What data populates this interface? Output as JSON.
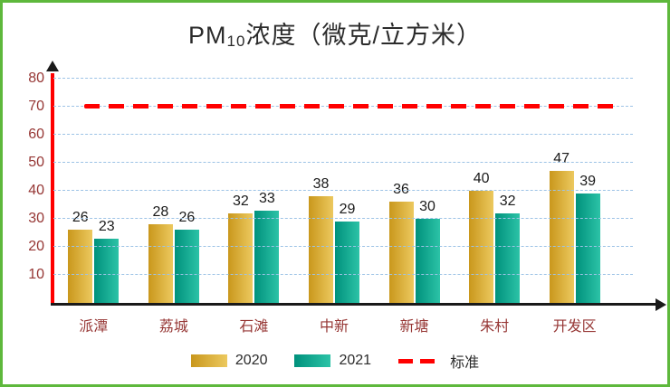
{
  "chart_data": {
    "type": "bar",
    "title": "PM10浓度（微克/立方米）",
    "title_parts": {
      "prefix": "PM",
      "sub": "10",
      "suffix": "浓度（微克/立方米）"
    },
    "categories": [
      "派潭",
      "荔城",
      "石滩",
      "中新",
      "新塘",
      "朱村",
      "开发区"
    ],
    "series": [
      {
        "name": "2020",
        "values": [
          26,
          28,
          32,
          38,
          36,
          40,
          47
        ],
        "color": "#c9971c",
        "color2": "#ecc95f"
      },
      {
        "name": "2021",
        "values": [
          23,
          26,
          33,
          29,
          30,
          32,
          39
        ],
        "color": "#00917c",
        "color2": "#2cc3a7"
      }
    ],
    "reference_line": {
      "label": "标准",
      "value": 70,
      "color": "#ff0000"
    },
    "ylim": [
      0,
      80
    ],
    "ytick_step": 10,
    "grid": true,
    "legend_position": "bottom",
    "colors": {
      "frame_border": "#5eb83c",
      "y_axis": "#ff0000",
      "x_axis": "#1a1a1a",
      "gridline": "#9dc3e6",
      "tick_labels": "#963634",
      "value_labels": "#1a1a1a"
    }
  }
}
